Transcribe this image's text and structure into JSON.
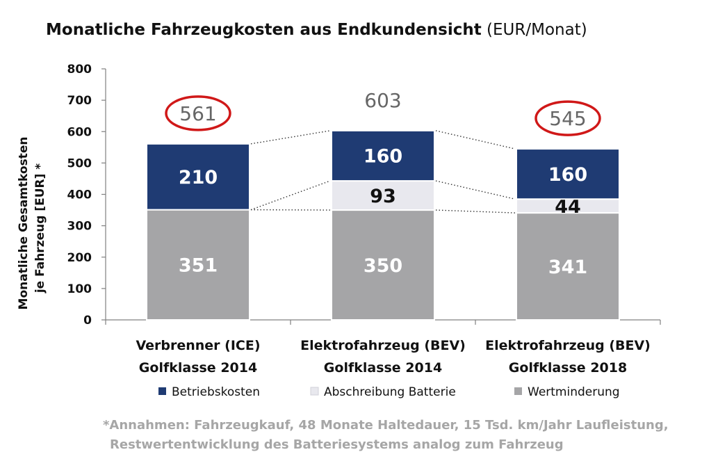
{
  "chart_data": {
    "type": "bar",
    "stacked": true,
    "title": "Monatliche Fahrzeugkosten aus Endkundensicht",
    "title_unit": "(EUR/Monat)",
    "ylabel_line1": "Monatliche Gesamtkosten",
    "ylabel_line2": "je Fahrzeug [EUR] *",
    "ylim": [
      0,
      800
    ],
    "yticks": [
      0,
      100,
      200,
      300,
      400,
      500,
      600,
      700,
      800
    ],
    "categories": [
      [
        "Verbrenner (ICE)",
        "Golfklasse 2014"
      ],
      [
        "Elektrofahrzeug (BEV)",
        "Golfklasse 2014"
      ],
      [
        "Elektrofahrzeug (BEV)",
        "Golfklasse 2018"
      ]
    ],
    "series": [
      {
        "name": "Wertminderung",
        "values": [
          351,
          350,
          341
        ],
        "color": "#a5a5a7",
        "label_color": "#ffffff"
      },
      {
        "name": "Abschreibung Batterie",
        "values": [
          0,
          93,
          44
        ],
        "color": "#e8e8ee",
        "label_color": "#111111"
      },
      {
        "name": "Betriebskosten",
        "values": [
          210,
          160,
          160
        ],
        "color": "#1f3b73",
        "label_color": "#ffffff"
      }
    ],
    "legend_order": [
      "Betriebskosten",
      "Abschreibung Batterie",
      "Wertminderung"
    ],
    "legend_position": "bottom",
    "totals": [
      561,
      603,
      545
    ],
    "totals_circled": [
      true,
      false,
      true
    ],
    "circle_color": "#d01818",
    "total_label_color": "#666666",
    "grid": false
  },
  "footnote": {
    "line1": "*Annahmen: Fahrzeugkauf, 48 Monate Haltedauer, 15 Tsd. km/Jahr Laufleistung,",
    "line2": "Restwertentwicklung des Batteriesystems analog zum Fahrzeug"
  }
}
